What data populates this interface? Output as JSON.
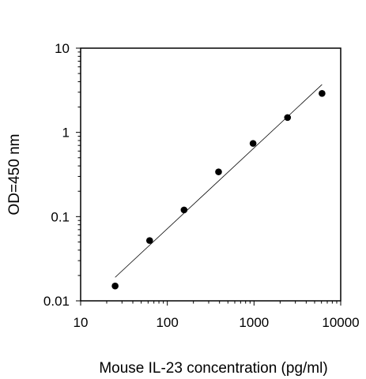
{
  "chart_data": {
    "type": "scatter",
    "title": "",
    "xlabel": "Mouse IL-23 concentration (pg/ml)",
    "ylabel": "OD=450 nm",
    "x_scale": "log",
    "y_scale": "log",
    "xlim": [
      10,
      10000
    ],
    "ylim": [
      0.01,
      10
    ],
    "x_ticks": [
      "10",
      "100",
      "1000",
      "10000"
    ],
    "y_ticks": [
      "0.01",
      "0.1",
      "1",
      "10"
    ],
    "grid": false,
    "legend": "none",
    "series": [
      {
        "x": [
          25,
          62.5,
          156,
          390,
          975,
          2437,
          6090
        ],
        "y": [
          0.015,
          0.052,
          0.12,
          0.34,
          0.74,
          1.5,
          2.9
        ]
      }
    ],
    "fit_line": {
      "x": [
        25,
        6090
      ],
      "y": [
        0.019,
        3.7
      ]
    },
    "colors": {
      "points": "#000000",
      "fit": "#000000",
      "axes": "#000000"
    }
  }
}
